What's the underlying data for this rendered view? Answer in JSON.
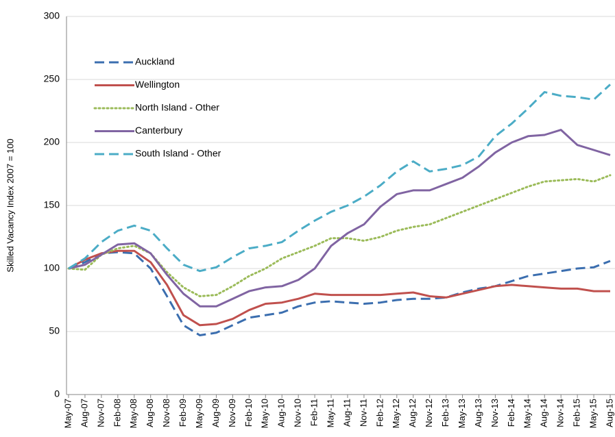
{
  "chart_data": {
    "type": "line",
    "y_label": "Skilled Vacancy Index 2007 = 100",
    "categories": [
      "May-07",
      "Aug-07",
      "Nov-07",
      "Feb-08",
      "May-08",
      "Aug-08",
      "Nov-08",
      "Feb-09",
      "May-09",
      "Aug-09",
      "Nov-09",
      "Feb-10",
      "May-10",
      "Aug-10",
      "Nov-10",
      "Feb-11",
      "May-11",
      "Aug-11",
      "Nov-11",
      "Feb-12",
      "May-12",
      "Aug-12",
      "Nov-12",
      "Feb-13",
      "May-13",
      "Aug-13",
      "Nov-13",
      "Feb-14",
      "May-14",
      "Aug-14",
      "Nov-14",
      "Feb-15",
      "May-15",
      "Aug-15"
    ],
    "series": [
      {
        "name": "Auckland",
        "color": "#3b6eaf",
        "style": "dashed",
        "values": [
          100,
          105,
          112,
          113,
          112,
          100,
          78,
          55,
          47,
          49,
          55,
          61,
          63,
          65,
          70,
          73,
          74,
          73,
          72,
          73,
          75,
          76,
          76,
          77,
          81,
          84,
          86,
          90,
          94,
          96,
          98,
          100,
          101,
          106
        ]
      },
      {
        "name": "Wellington",
        "color": "#c0504d",
        "style": "solid",
        "values": [
          100,
          107,
          112,
          114,
          114,
          105,
          87,
          63,
          55,
          56,
          60,
          67,
          72,
          73,
          76,
          80,
          79,
          79,
          79,
          79,
          80,
          81,
          78,
          77,
          80,
          83,
          86,
          87,
          86,
          85,
          84,
          84,
          82,
          82
        ]
      },
      {
        "name": "North Island - Other",
        "color": "#9bbb59",
        "style": "dotted",
        "values": [
          100,
          99,
          111,
          116,
          118,
          112,
          97,
          85,
          78,
          79,
          86,
          94,
          100,
          108,
          113,
          118,
          124,
          124,
          122,
          125,
          130,
          133,
          135,
          140,
          145,
          150,
          155,
          160,
          165,
          169,
          170,
          171,
          169,
          174
        ]
      },
      {
        "name": "Canterbury",
        "color": "#8064a2",
        "style": "solid",
        "values": [
          100,
          103,
          111,
          119,
          120,
          112,
          95,
          80,
          70,
          70,
          76,
          82,
          85,
          86,
          91,
          100,
          118,
          128,
          135,
          149,
          159,
          162,
          162,
          167,
          172,
          181,
          192,
          200,
          205,
          206,
          210,
          198,
          194,
          190
        ]
      },
      {
        "name": "South Island - Other",
        "color": "#4bacc6",
        "style": "dashed",
        "values": [
          100,
          108,
          121,
          130,
          134,
          130,
          116,
          103,
          98,
          101,
          109,
          116,
          118,
          121,
          130,
          138,
          145,
          150,
          157,
          166,
          177,
          185,
          177,
          179,
          182,
          189,
          205,
          215,
          227,
          240,
          237,
          236,
          234,
          246
        ]
      }
    ],
    "ylim": [
      0,
      300
    ],
    "yticks": [
      0,
      50,
      100,
      150,
      200,
      250,
      300
    ],
    "grid": true,
    "legend": "upper left"
  }
}
